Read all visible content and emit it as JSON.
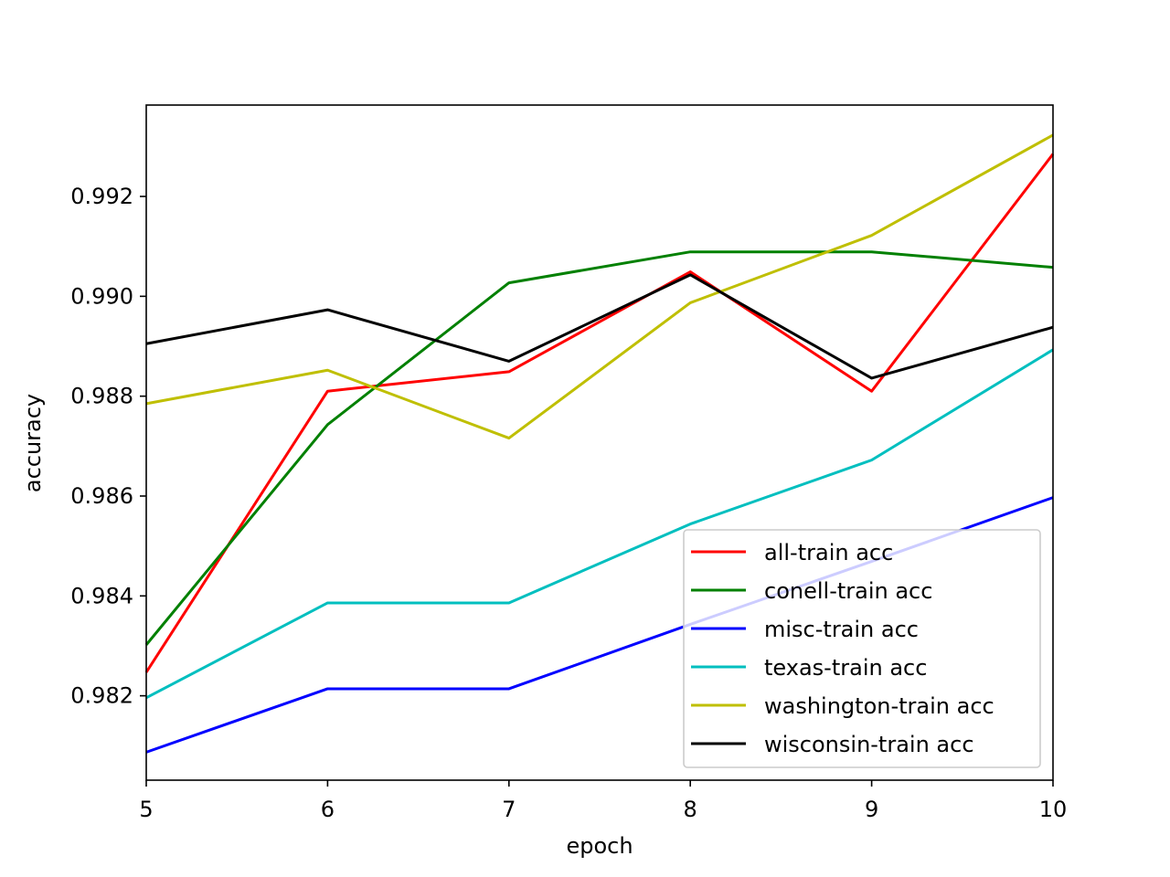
{
  "chart_data": {
    "type": "line",
    "title": "",
    "xlabel": "epoch",
    "ylabel": "accuracy",
    "xlim": [
      5,
      10
    ],
    "ylim": [
      0.98031,
      0.99383
    ],
    "xticks": [
      5,
      6,
      7,
      8,
      9,
      10
    ],
    "yticks": [
      0.982,
      0.984,
      0.986,
      0.988,
      0.99,
      0.992
    ],
    "yticklabels": [
      "0.982",
      "0.984",
      "0.986",
      "0.988",
      "0.990",
      "0.992"
    ],
    "grid": false,
    "legend_position": "lower-right",
    "x": [
      5,
      6,
      7,
      8,
      9,
      10
    ],
    "series": [
      {
        "name": "all-train acc",
        "color": "#ff0000",
        "values": [
          0.98247,
          0.9881,
          0.98849,
          0.99049,
          0.9881,
          0.99285
        ]
      },
      {
        "name": "conell-train acc",
        "color": "#008000",
        "values": [
          0.98302,
          0.98743,
          0.99027,
          0.99089,
          0.99089,
          0.99058
        ]
      },
      {
        "name": "misc-train acc",
        "color": "#0000ff",
        "values": [
          0.98087,
          0.98214,
          0.98214,
          0.98343,
          0.98469,
          0.98597
        ]
      },
      {
        "name": "texas-train acc",
        "color": "#00bfbf",
        "values": [
          0.98196,
          0.98386,
          0.98386,
          0.98544,
          0.98672,
          0.98893
        ]
      },
      {
        "name": "washington-train acc",
        "color": "#bfbf00",
        "values": [
          0.98785,
          0.98852,
          0.98716,
          0.98987,
          0.99122,
          0.99323
        ]
      },
      {
        "name": "wisconsin-train acc",
        "color": "#000000",
        "values": [
          0.98905,
          0.98973,
          0.9887,
          0.99043,
          0.98836,
          0.98938
        ]
      }
    ]
  }
}
